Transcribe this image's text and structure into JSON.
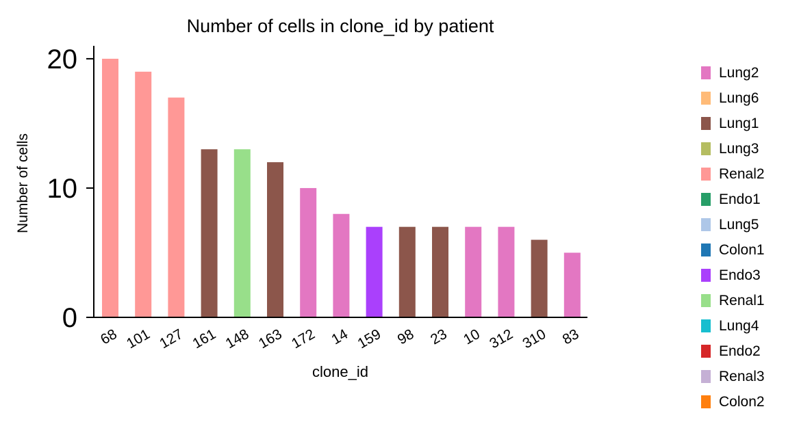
{
  "chart_data": {
    "type": "bar",
    "title": "Number of cells in clone_id by patient",
    "xlabel": "clone_id",
    "ylabel": "Number of cells",
    "ylim": [
      0,
      21
    ],
    "yticks": [
      0,
      10,
      20
    ],
    "categories": [
      "68",
      "101",
      "127",
      "161",
      "148",
      "163",
      "172",
      "14",
      "159",
      "98",
      "23",
      "10",
      "312",
      "310",
      "83"
    ],
    "values": [
      20,
      19,
      17,
      13,
      13,
      12,
      10,
      8,
      7,
      7,
      7,
      7,
      7,
      6,
      5
    ],
    "bar_patients": [
      "Renal2",
      "Renal2",
      "Renal2",
      "Lung1",
      "Renal1",
      "Lung1",
      "Lung2",
      "Lung2",
      "Endo3",
      "Lung1",
      "Lung1",
      "Lung2",
      "Lung2",
      "Lung1",
      "Lung2"
    ],
    "legend": [
      {
        "name": "Lung2",
        "color": "#e377c2"
      },
      {
        "name": "Lung6",
        "color": "#ffbb78"
      },
      {
        "name": "Lung1",
        "color": "#8c564b"
      },
      {
        "name": "Lung3",
        "color": "#b5bd61"
      },
      {
        "name": "Renal2",
        "color": "#ff9896"
      },
      {
        "name": "Endo1",
        "color": "#279e68"
      },
      {
        "name": "Lung5",
        "color": "#aec7e8"
      },
      {
        "name": "Colon1",
        "color": "#1f77b4"
      },
      {
        "name": "Endo3",
        "color": "#aa40fc"
      },
      {
        "name": "Renal1",
        "color": "#98df8a"
      },
      {
        "name": "Lung4",
        "color": "#17becf"
      },
      {
        "name": "Endo2",
        "color": "#d62728"
      },
      {
        "name": "Renal3",
        "color": "#c5b0d5"
      },
      {
        "name": "Colon2",
        "color": "#ff7f0e"
      }
    ],
    "legend_position": "right",
    "grid": false
  }
}
